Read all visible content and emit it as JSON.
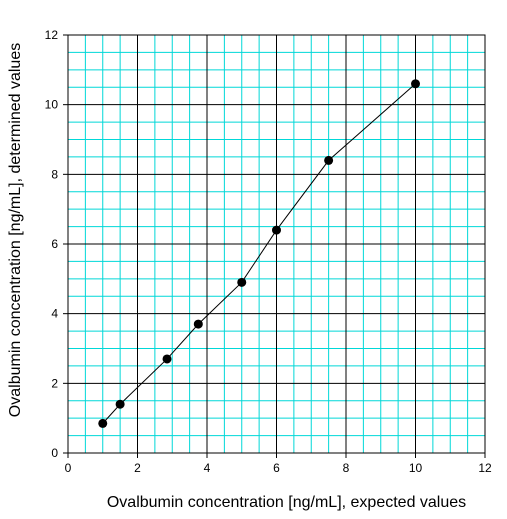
{
  "chart_data": {
    "type": "scatter",
    "title": "",
    "xlabel": "Ovalbumin concentration [ng/mL], expected values",
    "ylabel": "Ovalbumin concentration [ng/mL], determined values",
    "xlim": [
      0,
      12
    ],
    "ylim": [
      0,
      12
    ],
    "x_ticks": [
      "0",
      "2",
      "4",
      "6",
      "8",
      "10",
      "12"
    ],
    "y_ticks": [
      "0",
      "2",
      "4",
      "6",
      "8",
      "10",
      "12"
    ],
    "grid": "on",
    "series": [
      {
        "points": [
          {
            "x": 1.0,
            "y": 0.85
          },
          {
            "x": 1.5,
            "y": 1.4
          },
          {
            "x": 2.85,
            "y": 2.7
          },
          {
            "x": 3.75,
            "y": 3.7
          },
          {
            "x": 5.0,
            "y": 4.9
          },
          {
            "x": 6.0,
            "y": 6.4
          },
          {
            "x": 7.5,
            "y": 8.4
          },
          {
            "x": 10.0,
            "y": 10.6
          }
        ],
        "color": "#000000"
      }
    ],
    "minor_grid_color": "#00d8d8",
    "major_grid_color": "#000000"
  }
}
